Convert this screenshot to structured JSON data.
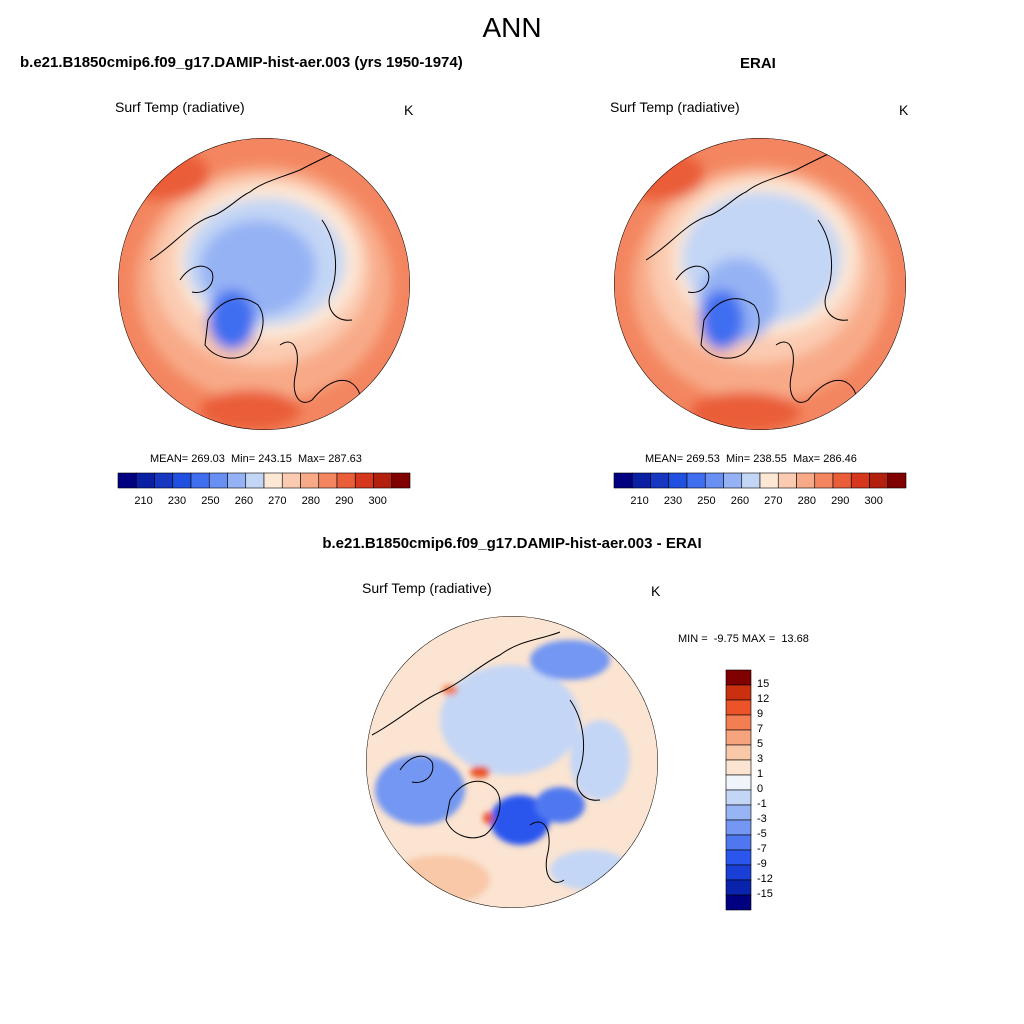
{
  "title": "ANN",
  "colors": {
    "abs_scale": [
      "#000080",
      "#0a1fa3",
      "#1537c2",
      "#2050e0",
      "#3f6ef0",
      "#6890f2",
      "#95b2f4",
      "#c3d6f5",
      "#fde8d6",
      "#fbcbb1",
      "#f8aa88",
      "#f38660",
      "#ea5d39",
      "#d6371c",
      "#b3200e",
      "#800000"
    ],
    "diff_scale": [
      "#000080",
      "#0a23ad",
      "#1a3fd6",
      "#2b56ee",
      "#4f78f0",
      "#7397f2",
      "#97b4f4",
      "#c4d6f5",
      "#f0f4fb",
      "#fbe4d1",
      "#f9c8a8",
      "#f6a47e",
      "#f27e52",
      "#ea5428",
      "#c8300e",
      "#800000"
    ],
    "ocean_pole": "#c8dcf5",
    "land_outline": "#000000"
  },
  "panels": [
    {
      "case": "b.e21.B1850cmip6.f09_g17.DAMIP-hist-aer.003 (yrs 1950-1974)",
      "variable": "Surf Temp (radiative)",
      "units": "K",
      "stats": "MEAN= 269.03  Min= 243.15  Max= 287.63",
      "colorbar_ticks": [
        "210",
        "230",
        "250",
        "260",
        "270",
        "280",
        "290",
        "300"
      ]
    },
    {
      "case": "ERAI",
      "variable": "Surf Temp (radiative)",
      "units": "K",
      "stats": "MEAN= 269.53  Min= 238.55  Max= 286.46",
      "colorbar_ticks": [
        "210",
        "230",
        "250",
        "260",
        "270",
        "280",
        "290",
        "300"
      ]
    },
    {
      "case": "b.e21.B1850cmip6.f09_g17.DAMIP-hist-aer.003 - ERAI",
      "variable": "Surf Temp (radiative)",
      "units": "K",
      "stats": "MIN =  -9.75 MAX =  13.68",
      "colorbar_ticks": [
        "15",
        "12",
        "9",
        "7",
        "5",
        "3",
        "1",
        "0",
        "-1",
        "-3",
        "-5",
        "-7",
        "-9",
        "-12",
        "-15"
      ]
    }
  ]
}
